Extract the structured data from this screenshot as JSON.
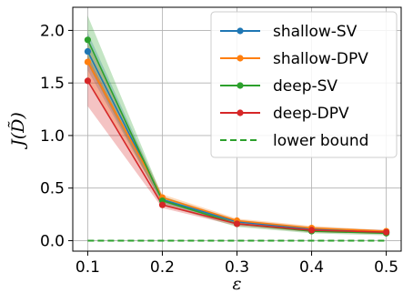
{
  "chart_data": {
    "type": "line",
    "title": "",
    "xlabel": "ε",
    "ylabel": "J(D̃)",
    "x": [
      0.1,
      0.2,
      0.3,
      0.4,
      0.5
    ],
    "x_ticks": [
      0.1,
      0.2,
      0.3,
      0.4,
      0.5
    ],
    "x_tick_labels": [
      "0.1",
      "0.2",
      "0.3",
      "0.4",
      "0.5"
    ],
    "y_ticks": [
      0.0,
      0.5,
      1.0,
      1.5,
      2.0
    ],
    "y_tick_labels": [
      "0.0",
      "0.5",
      "1.0",
      "1.5",
      "2.0"
    ],
    "xlim": [
      0.08,
      0.52
    ],
    "ylim": [
      -0.1,
      2.22
    ],
    "grid": true,
    "legend_position": "top-right",
    "series": [
      {
        "name": "shallow-SV",
        "color": "#1f77b4",
        "values": [
          1.8,
          0.39,
          0.18,
          0.11,
          0.08
        ],
        "band_low": [
          1.62,
          0.36,
          0.16,
          0.09,
          0.07
        ],
        "band_high": [
          1.98,
          0.42,
          0.2,
          0.13,
          0.1
        ]
      },
      {
        "name": "shallow-DPV",
        "color": "#ff7f0e",
        "values": [
          1.7,
          0.41,
          0.19,
          0.12,
          0.09
        ],
        "band_low": [
          1.52,
          0.38,
          0.17,
          0.1,
          0.08
        ],
        "band_high": [
          1.88,
          0.44,
          0.21,
          0.14,
          0.1
        ]
      },
      {
        "name": "deep-SV",
        "color": "#2ca02c",
        "values": [
          1.91,
          0.38,
          0.16,
          0.09,
          0.07
        ],
        "band_low": [
          1.68,
          0.34,
          0.13,
          0.07,
          0.05
        ],
        "band_high": [
          2.14,
          0.42,
          0.19,
          0.11,
          0.09
        ]
      },
      {
        "name": "deep-DPV",
        "color": "#d62728",
        "values": [
          1.52,
          0.34,
          0.16,
          0.1,
          0.08
        ],
        "band_low": [
          1.28,
          0.31,
          0.14,
          0.08,
          0.06
        ],
        "band_high": [
          1.76,
          0.37,
          0.18,
          0.12,
          0.1
        ]
      }
    ],
    "lower_bound": {
      "name": "lower bound",
      "color": "#2ca02c",
      "value": 0.0,
      "style": "dashed"
    }
  }
}
